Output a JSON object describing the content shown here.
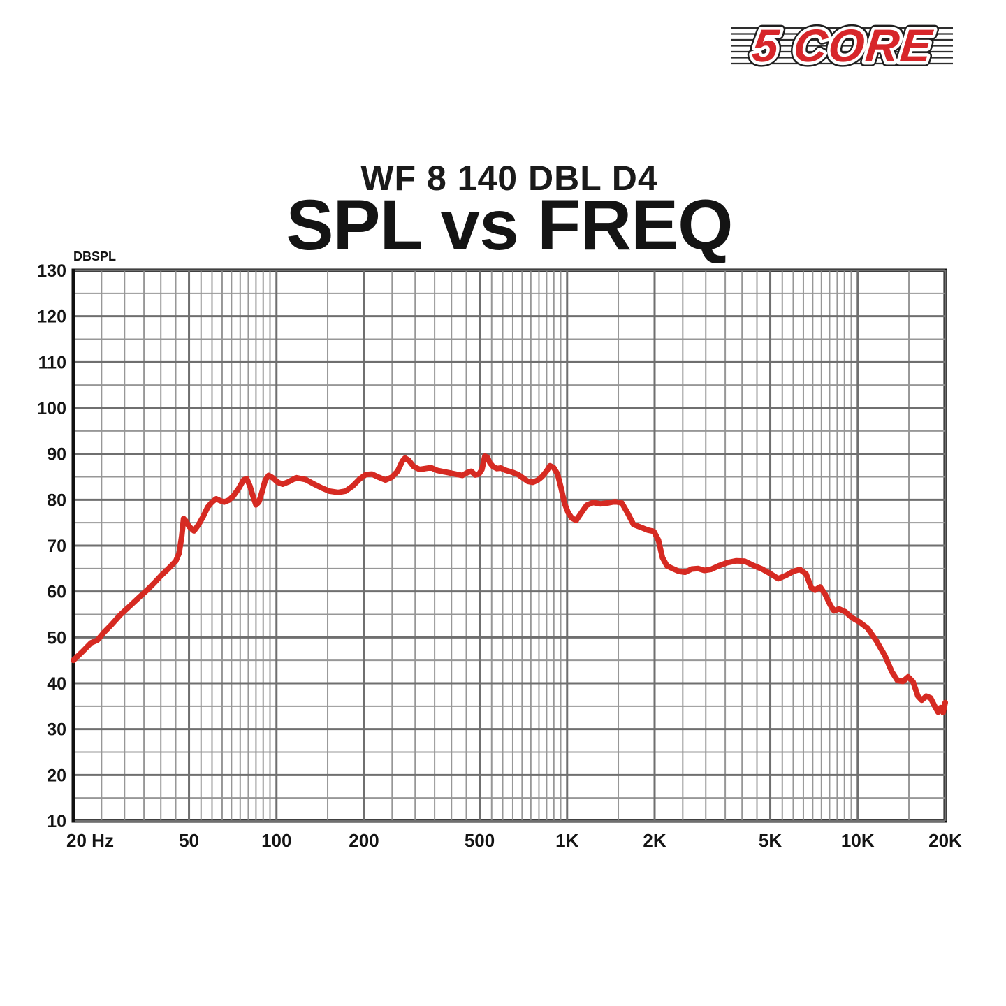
{
  "header": {
    "subtitle": "WF 8 140 DBL D4",
    "title": "SPL vs FREQ"
  },
  "logo": {
    "text": "5 CORE",
    "text_color": "#d7262a",
    "halo_color": "#ffffff",
    "outline_color": "#1f1f1f",
    "stripe_color": "#2e2e2e"
  },
  "colors": {
    "curve_red": "#d62a22",
    "grid_minor": "#979797",
    "grid_major": "#6f6f6f",
    "border_black": "#111111",
    "label_black": "#141414"
  },
  "chart_data": {
    "type": "line",
    "title": "SPL vs FREQ",
    "subtitle": "WF 8 140 DBL D4",
    "x_axis": {
      "scale": "log",
      "min": 20,
      "max": 20000,
      "unit": "Hz",
      "tick_labels": [
        {
          "value": 20,
          "label": "20 Hz"
        },
        {
          "value": 50,
          "label": "50"
        },
        {
          "value": 100,
          "label": "100"
        },
        {
          "value": 200,
          "label": "200"
        },
        {
          "value": 500,
          "label": "500"
        },
        {
          "value": 1000,
          "label": "1K"
        },
        {
          "value": 2000,
          "label": "2K"
        },
        {
          "value": 5000,
          "label": "5K"
        },
        {
          "value": 10000,
          "label": "10K"
        },
        {
          "value": 20000,
          "label": "20K"
        }
      ]
    },
    "y_axis": {
      "label": "DBSPL",
      "min": 10,
      "max": 130,
      "major_step": 10,
      "minor_step": 5,
      "tick_labels": [
        130,
        120,
        110,
        100,
        90,
        80,
        70,
        60,
        50,
        40,
        30,
        20,
        10
      ]
    },
    "grid": {
      "on": true,
      "minor_x_rule": "20-100 step 5, 100-1000 step 50, 1000-10000 step 500, 10000-20000 step 5000",
      "minor_y_rule": "every 5 dB"
    },
    "legend": "none",
    "series": [
      {
        "name": "SPL",
        "color": "#d62a22",
        "points": [
          [
            20,
            45.0
          ],
          [
            21.5,
            46.9
          ],
          [
            23,
            48.8
          ],
          [
            24.2,
            49.4
          ],
          [
            25.5,
            51.1
          ],
          [
            27,
            52.7
          ],
          [
            29,
            54.9
          ],
          [
            31,
            56.6
          ],
          [
            33.5,
            58.6
          ],
          [
            36,
            60.4
          ],
          [
            38,
            61.9
          ],
          [
            40,
            63.4
          ],
          [
            42.5,
            65.0
          ],
          [
            45,
            66.6
          ],
          [
            46.2,
            68.3
          ],
          [
            47.2,
            72.0
          ],
          [
            47.9,
            75.9
          ],
          [
            48.9,
            75.3
          ],
          [
            50,
            74.2
          ],
          [
            52,
            73.2
          ],
          [
            54,
            74.6
          ],
          [
            56,
            76.4
          ],
          [
            58,
            78.4
          ],
          [
            60,
            79.5
          ],
          [
            62,
            80.2
          ],
          [
            64,
            79.8
          ],
          [
            66,
            79.5
          ],
          [
            68.5,
            79.9
          ],
          [
            71,
            80.8
          ],
          [
            74,
            82.4
          ],
          [
            77,
            84.3
          ],
          [
            79,
            84.6
          ],
          [
            81,
            83.0
          ],
          [
            83,
            80.8
          ],
          [
            85,
            78.9
          ],
          [
            87,
            79.5
          ],
          [
            89,
            81.5
          ],
          [
            91.5,
            84.3
          ],
          [
            94,
            85.3
          ],
          [
            97,
            84.8
          ],
          [
            101,
            83.8
          ],
          [
            105,
            83.4
          ],
          [
            110,
            83.9
          ],
          [
            117,
            84.8
          ],
          [
            126,
            84.4
          ],
          [
            134,
            83.5
          ],
          [
            143,
            82.6
          ],
          [
            152,
            81.9
          ],
          [
            163,
            81.6
          ],
          [
            173,
            81.9
          ],
          [
            183,
            83.0
          ],
          [
            193,
            84.5
          ],
          [
            203,
            85.5
          ],
          [
            213,
            85.6
          ],
          [
            225,
            84.9
          ],
          [
            237,
            84.3
          ],
          [
            249,
            84.9
          ],
          [
            261,
            86.2
          ],
          [
            271,
            88.4
          ],
          [
            277,
            89.1
          ],
          [
            285,
            88.6
          ],
          [
            297,
            87.2
          ],
          [
            311,
            86.6
          ],
          [
            325,
            86.8
          ],
          [
            340,
            87.0
          ],
          [
            357,
            86.4
          ],
          [
            377,
            86.1
          ],
          [
            398,
            85.8
          ],
          [
            419,
            85.5
          ],
          [
            436,
            85.3
          ],
          [
            453,
            85.9
          ],
          [
            468,
            86.2
          ],
          [
            483,
            85.4
          ],
          [
            497,
            85.6
          ],
          [
            509,
            86.6
          ],
          [
            521,
            89.5
          ],
          [
            531,
            89.3
          ],
          [
            543,
            88.0
          ],
          [
            557,
            87.2
          ],
          [
            573,
            86.8
          ],
          [
            591,
            86.9
          ],
          [
            616,
            86.4
          ],
          [
            647,
            86.0
          ],
          [
            678,
            85.5
          ],
          [
            707,
            84.7
          ],
          [
            733,
            84.0
          ],
          [
            762,
            83.8
          ],
          [
            793,
            84.3
          ],
          [
            819,
            85.0
          ],
          [
            849,
            86.2
          ],
          [
            873,
            87.4
          ],
          [
            899,
            87.0
          ],
          [
            927,
            85.6
          ],
          [
            953,
            82.6
          ],
          [
            980,
            79.2
          ],
          [
            1008,
            77.2
          ],
          [
            1038,
            76.0
          ],
          [
            1075,
            75.5
          ],
          [
            1118,
            77.1
          ],
          [
            1168,
            78.8
          ],
          [
            1228,
            79.4
          ],
          [
            1302,
            79.1
          ],
          [
            1382,
            79.3
          ],
          [
            1462,
            79.6
          ],
          [
            1542,
            79.3
          ],
          [
            1612,
            77.2
          ],
          [
            1692,
            74.6
          ],
          [
            1792,
            74.0
          ],
          [
            1892,
            73.4
          ],
          [
            1988,
            73.1
          ],
          [
            2062,
            71.2
          ],
          [
            2128,
            67.4
          ],
          [
            2205,
            65.6
          ],
          [
            2305,
            65.0
          ],
          [
            2425,
            64.4
          ],
          [
            2545,
            64.2
          ],
          [
            2685,
            64.9
          ],
          [
            2825,
            65.0
          ],
          [
            2965,
            64.6
          ],
          [
            3125,
            64.8
          ],
          [
            3325,
            65.6
          ],
          [
            3565,
            66.3
          ],
          [
            3825,
            66.7
          ],
          [
            4085,
            66.6
          ],
          [
            4365,
            65.7
          ],
          [
            4685,
            64.9
          ],
          [
            5005,
            63.9
          ],
          [
            5325,
            62.8
          ],
          [
            5665,
            63.5
          ],
          [
            6005,
            64.4
          ],
          [
            6325,
            64.8
          ],
          [
            6645,
            63.8
          ],
          [
            6925,
            60.8
          ],
          [
            7125,
            60.3
          ],
          [
            7425,
            61.0
          ],
          [
            7725,
            59.4
          ],
          [
            8055,
            57.0
          ],
          [
            8285,
            55.8
          ],
          [
            8625,
            56.2
          ],
          [
            9055,
            55.6
          ],
          [
            9555,
            54.3
          ],
          [
            10105,
            53.4
          ],
          [
            10805,
            52.0
          ],
          [
            11605,
            49.2
          ],
          [
            12405,
            46.0
          ],
          [
            13105,
            42.5
          ],
          [
            13705,
            40.6
          ],
          [
            14305,
            40.4
          ],
          [
            14905,
            41.4
          ],
          [
            15505,
            40.3
          ],
          [
            16105,
            37.2
          ],
          [
            16605,
            36.3
          ],
          [
            17205,
            37.2
          ],
          [
            17805,
            36.8
          ],
          [
            18405,
            35.0
          ],
          [
            18905,
            33.7
          ],
          [
            19305,
            34.7
          ],
          [
            19655,
            33.6
          ],
          [
            20000,
            35.8
          ]
        ]
      }
    ]
  }
}
